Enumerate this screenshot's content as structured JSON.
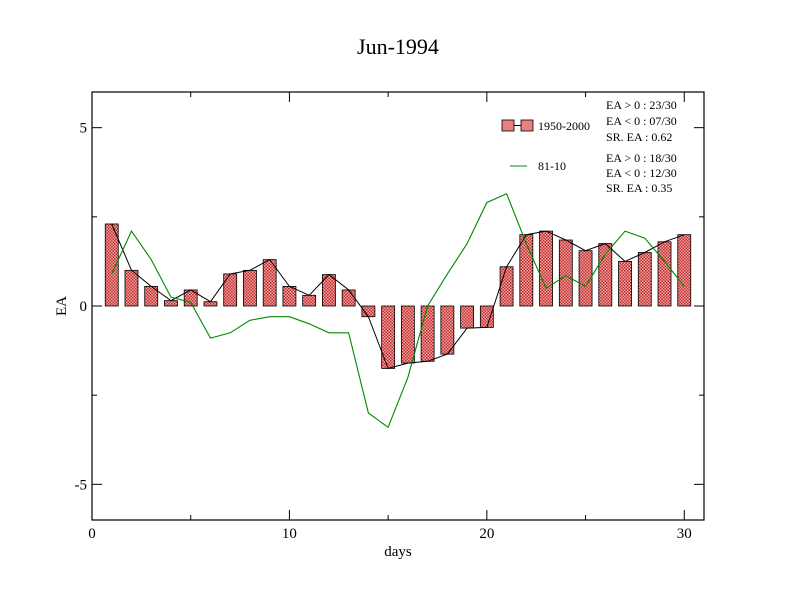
{
  "chart_data": {
    "type": "bar",
    "title": "Jun-1994",
    "xlabel": "days",
    "ylabel": "EA",
    "xlim": [
      0,
      31
    ],
    "ylim": [
      -6,
      6
    ],
    "x_ticks": [
      0,
      10,
      20,
      30
    ],
    "y_ticks": [
      -5,
      0,
      5
    ],
    "x_tick_labels": [
      "0",
      "10",
      "20",
      "30"
    ],
    "y_tick_labels": [
      "-5",
      "0",
      "5"
    ],
    "grid": false,
    "legend_position": "top-right",
    "x": [
      1,
      2,
      3,
      4,
      5,
      6,
      7,
      8,
      9,
      10,
      11,
      12,
      13,
      14,
      15,
      16,
      17,
      18,
      19,
      20,
      21,
      22,
      23,
      24,
      25,
      26,
      27,
      28,
      29,
      30
    ],
    "series": [
      {
        "name": "1950-2000",
        "type": "bar",
        "color": "#e88080",
        "values": [
          2.3,
          1.0,
          0.55,
          0.15,
          0.45,
          0.12,
          0.9,
          1.0,
          1.3,
          0.55,
          0.3,
          0.88,
          0.45,
          -0.3,
          -1.75,
          -1.6,
          -1.55,
          -1.35,
          -0.62,
          -0.6,
          1.1,
          2.0,
          2.1,
          1.85,
          1.55,
          1.75,
          1.25,
          1.5,
          1.8,
          2.0
        ]
      },
      {
        "name": "81-10",
        "type": "line",
        "color": "#008800",
        "values": [
          0.9,
          2.1,
          1.3,
          0.25,
          0.1,
          -0.9,
          -0.75,
          -0.4,
          -0.3,
          -0.3,
          -0.5,
          -0.75,
          -0.75,
          -3.0,
          -3.4,
          -2.0,
          0.0,
          0.9,
          1.75,
          2.9,
          3.15,
          1.75,
          0.5,
          0.85,
          0.55,
          1.45,
          2.1,
          1.9,
          1.25,
          0.55
        ]
      }
    ],
    "stats": {
      "s1": [
        "EA > 0 : 23/30",
        "EA < 0 : 07/30",
        "SR. EA :  0.62"
      ],
      "s2": [
        "EA > 0 : 18/30",
        "EA < 0 : 12/30",
        "SR. EA :  0.35"
      ]
    }
  }
}
